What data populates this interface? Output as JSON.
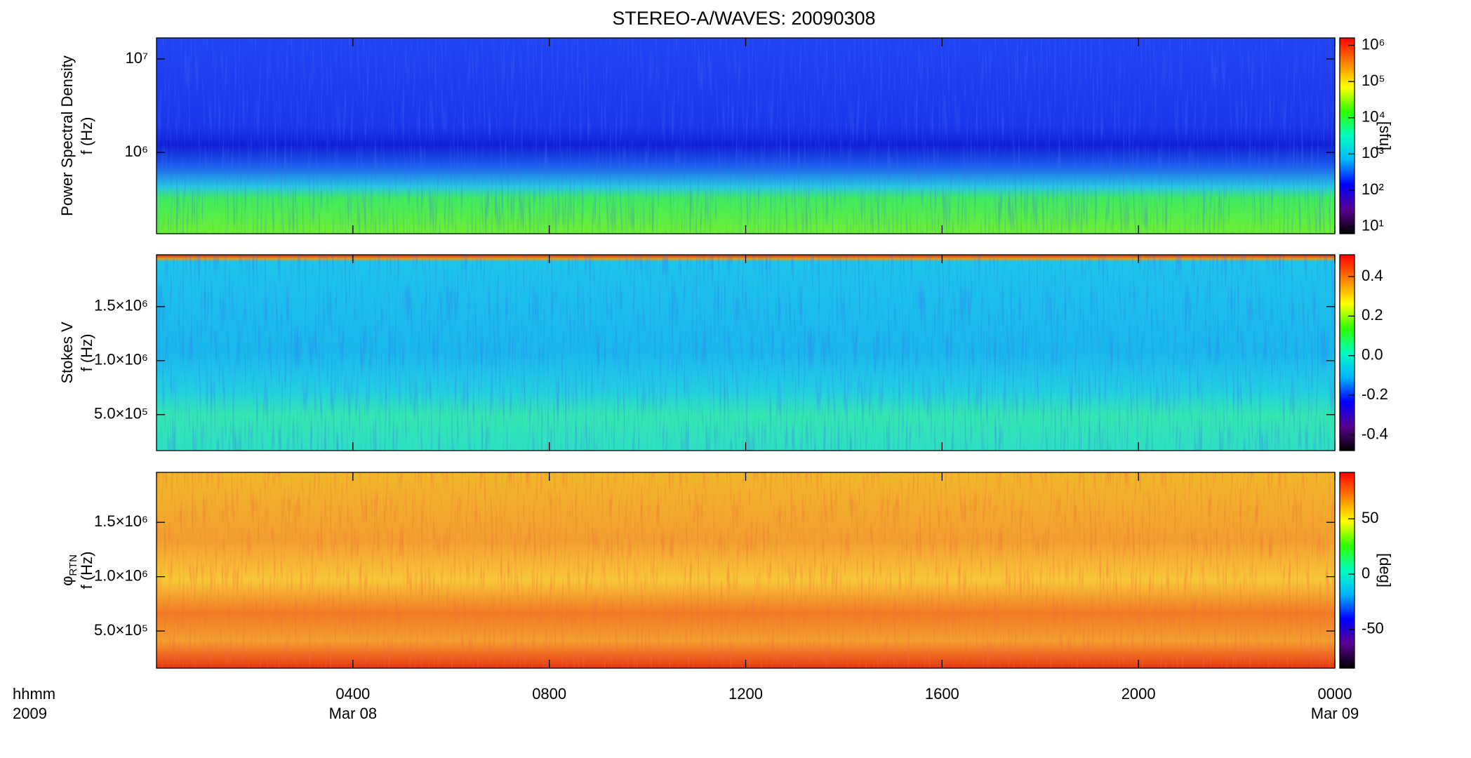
{
  "title": "STEREO-A/WAVES: 20090308",
  "chart_data": [
    {
      "type": "spectrogram",
      "quantity": "Power Spectral Density",
      "ylabel": "f (Hz)",
      "log": true,
      "ylim": [
        135000,
        16800000
      ],
      "yticks": [
        {
          "value": 1000000,
          "label": "10⁶"
        },
        {
          "value": 10000000,
          "label": "10⁷"
        }
      ],
      "colorbar_label": "[sfu]",
      "clog": true,
      "clim": [
        6.3,
        1600000
      ],
      "cticks": [
        {
          "value": 10,
          "label": "10¹"
        },
        {
          "value": 100,
          "label": "10²"
        },
        {
          "value": 1000,
          "label": "10³"
        },
        {
          "value": 10000,
          "label": "10⁴"
        },
        {
          "value": 100000,
          "label": "10⁵"
        },
        {
          "value": 1000000,
          "label": "10⁶"
        }
      ],
      "colormap": [
        "#000000",
        "#5a0090",
        "#0000ff",
        "#00b4ff",
        "#00ffc0",
        "#30ff00",
        "#ffff00",
        "#ff8000",
        "#ff0000"
      ]
    },
    {
      "type": "spectrogram",
      "quantity": "Stokes V",
      "ylabel": "f (Hz)",
      "log": false,
      "ylim": [
        167000,
        1980000
      ],
      "yticks": [
        {
          "value": 500000,
          "label": "5.0×10⁵"
        },
        {
          "value": 1000000,
          "label": "1.0×10⁶"
        },
        {
          "value": 1500000,
          "label": "1.5×10⁶"
        }
      ],
      "clog": false,
      "clim": [
        -0.48,
        0.51
      ],
      "cticks": [
        -0.4,
        -0.2,
        {
          "value": 0,
          "label": "0.0"
        },
        0.2,
        0.4
      ],
      "colormap": [
        "#000000",
        "#5a0090",
        "#0000ff",
        "#00b4ff",
        "#00ffc0",
        "#30ff00",
        "#ffff00",
        "#ff8000",
        "#ff0000"
      ]
    },
    {
      "type": "spectrogram",
      "quantity": "φ",
      "quantity_subscript": "RTN",
      "ylabel": "f (Hz)",
      "log": false,
      "ylim": [
        158000,
        1960000
      ],
      "yticks": [
        {
          "value": 500000,
          "label": "5.0×10⁵"
        },
        {
          "value": 1000000,
          "label": "1.0×10⁶"
        },
        {
          "value": 1500000,
          "label": "1.5×10⁶"
        }
      ],
      "colorbar_label": "[deg]",
      "clog": false,
      "clim": [
        -85,
        92
      ],
      "cticks": [
        -50,
        0,
        50
      ],
      "colormap": [
        "#000000",
        "#5a0090",
        "#0000ff",
        "#00b4ff",
        "#00ffc0",
        "#30ff00",
        "#ffff00",
        "#ff8000",
        "#ff0000"
      ],
      "xlabel": "hhmm",
      "xlabel2": "2009",
      "xlim": [
        0,
        24
      ],
      "xticks": [
        {
          "value": 4,
          "label": "0400"
        },
        {
          "value": 8,
          "label": "0800"
        },
        {
          "value": 12,
          "label": "1200"
        },
        {
          "value": 16,
          "label": "1600"
        },
        {
          "value": 20,
          "label": "2000"
        },
        {
          "value": 24,
          "label": "0000"
        }
      ],
      "xtick_dates": [
        {
          "value": 4,
          "label": "Mar 08"
        },
        {
          "value": 24,
          "label": "Mar 09"
        }
      ]
    }
  ]
}
